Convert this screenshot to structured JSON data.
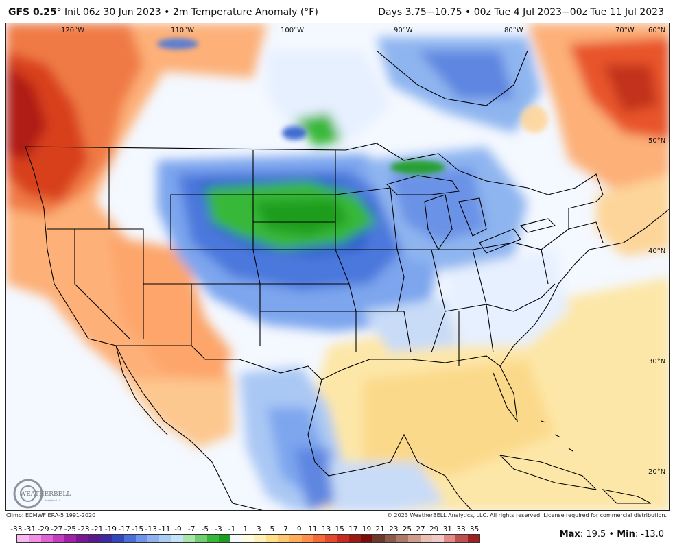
{
  "header": {
    "model": "GFS 0.25",
    "degree": "°",
    "init_text": " Init 06z 30 Jun 2023 • 2m Temperature Anomaly (°F)",
    "valid_text": "Days 3.75−10.75 • 00z Tue 4 Jul 2023−00z Tue 11 Jul 2023"
  },
  "map": {
    "longitude_labels": [
      "120°W",
      "110°W",
      "100°W",
      "90°W",
      "80°W",
      "70°W"
    ],
    "latitude_labels": [
      "60°N",
      "50°N",
      "40°N",
      "30°N",
      "20°N"
    ],
    "logo_text": "WEATHERBELL",
    "logo_subtext": "Analytics LLC"
  },
  "footer": {
    "climo": "Climo: ECMWF ERA-5 1991-2020",
    "copyright": "© 2023 WeatherBELL Analytics, LLC. All rights reserved. License required for commercial distribution.",
    "max_label": "Max",
    "max_value": ": 19.5 • ",
    "min_label": "Min",
    "min_value": ": -13.0"
  },
  "legend": {
    "tick_labels": [
      "-33",
      "-31",
      "-29",
      "-27",
      "-25",
      "-23",
      "-21",
      "-19",
      "-17",
      "-15",
      "-13",
      "-11",
      "-9",
      "-7",
      "-5",
      "-3",
      "-1",
      "1",
      "3",
      "5",
      "7",
      "9",
      "11",
      "13",
      "15",
      "17",
      "19",
      "21",
      "23",
      "25",
      "27",
      "29",
      "31",
      "33",
      "35"
    ],
    "colors": [
      "#f7b7ef",
      "#f08fe4",
      "#e060d6",
      "#c53cc0",
      "#a020a8",
      "#7a1692",
      "#5a1a8c",
      "#3c2aa0",
      "#3346c0",
      "#4a6fd8",
      "#6f93e8",
      "#90b0f0",
      "#aacdf6",
      "#c2e3f8",
      "#a8e6a8",
      "#70d070",
      "#38b838",
      "#1e9e1e",
      "#f4f9ff",
      "#fffbe0",
      "#fff2b8",
      "#ffe08a",
      "#ffc870",
      "#ffad5a",
      "#ff8f4a",
      "#f56a36",
      "#e5482a",
      "#c82a1e",
      "#a01812",
      "#7a0c0a",
      "#6b3a2a",
      "#8b5a4a",
      "#b07868",
      "#d09c8c",
      "#eac0b4",
      "#f0c8c8",
      "#e08a8a",
      "#c05050",
      "#a02020"
    ]
  }
}
